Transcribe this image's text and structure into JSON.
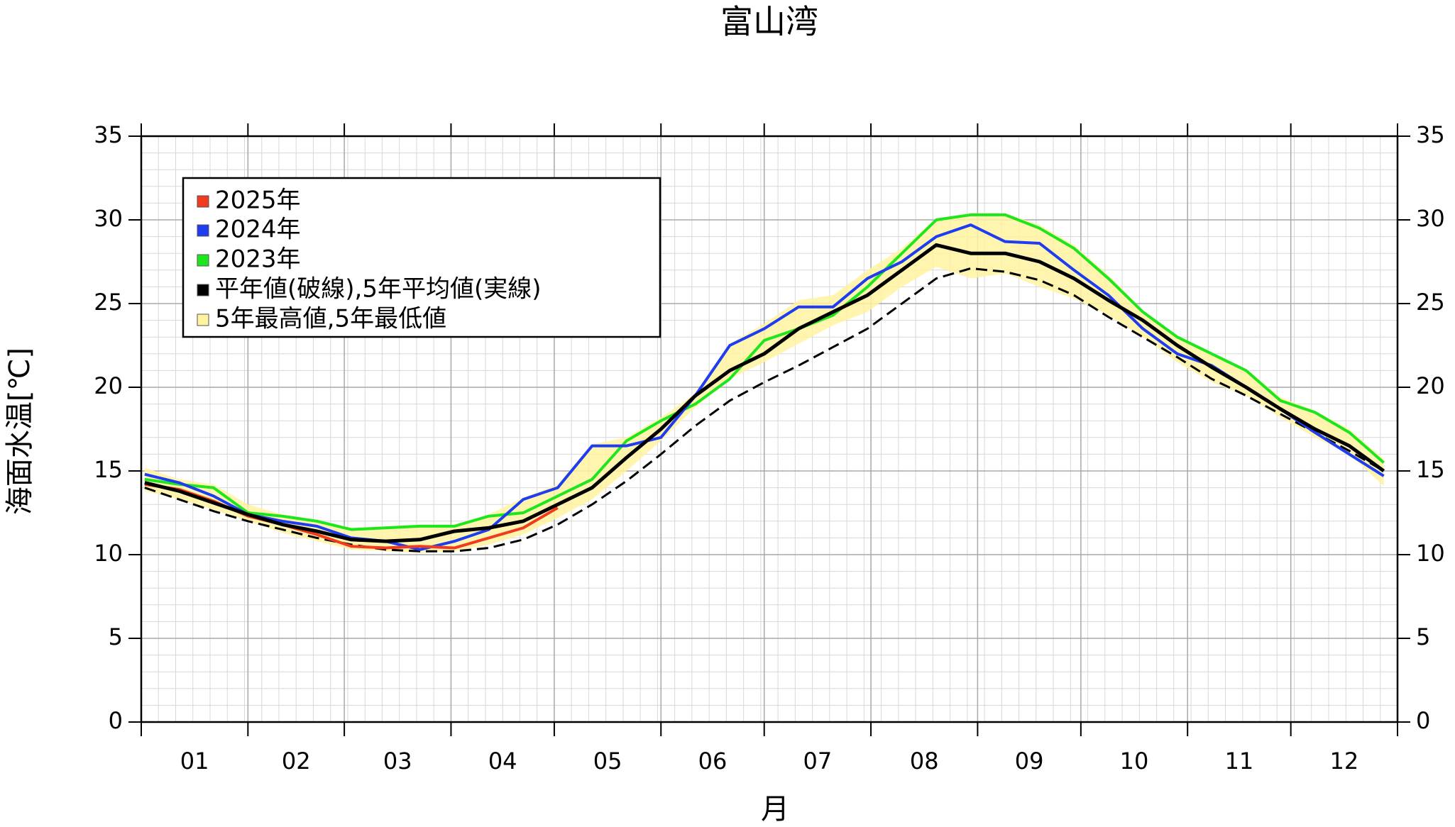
{
  "chart_data": {
    "type": "line",
    "title": "富山湾",
    "ylabel": "海面水温[℃]",
    "xlabel": "月",
    "month_labels": [
      "01",
      "02",
      "03",
      "04",
      "05",
      "06",
      "07",
      "08",
      "09",
      "10",
      "11",
      "12"
    ],
    "xlim": [
      0,
      365
    ],
    "xticks": [
      0,
      31,
      59,
      90,
      120,
      151,
      181,
      212,
      243,
      273,
      304,
      334,
      365
    ],
    "ylim": [
      0,
      35
    ],
    "yticks": [
      0,
      5,
      10,
      15,
      20,
      25,
      30,
      35
    ],
    "x_minor_step": 5,
    "y_minor_step": 1,
    "grid": true,
    "x": [
      1,
      11,
      21,
      31,
      41,
      51,
      61,
      71,
      81,
      91,
      101,
      111,
      121,
      131,
      141,
      151,
      161,
      171,
      181,
      191,
      201,
      211,
      221,
      231,
      241,
      251,
      261,
      271,
      281,
      291,
      301,
      311,
      321,
      331,
      341,
      351,
      361
    ],
    "band": {
      "name": "5年最高値,5年最低値",
      "color": "#fff3a0",
      "upper": [
        15.2,
        14.5,
        14.2,
        13.0,
        12.4,
        12.1,
        11.6,
        11.7,
        11.8,
        11.8,
        12.4,
        13.4,
        14.2,
        16.6,
        17.0,
        18.2,
        19.6,
        22.6,
        23.8,
        25.2,
        25.5,
        27.0,
        28.3,
        30.1,
        30.4,
        30.4,
        29.7,
        28.5,
        26.7,
        24.6,
        23.1,
        22.1,
        21.1,
        19.4,
        18.6,
        17.5,
        15.7
      ],
      "lower": [
        13.8,
        13.3,
        12.7,
        12.0,
        11.3,
        10.8,
        10.3,
        10.2,
        10.1,
        10.2,
        10.6,
        11.2,
        12.2,
        13.3,
        15.0,
        16.8,
        18.8,
        20.5,
        21.5,
        22.6,
        23.7,
        24.5,
        26.0,
        27.2,
        26.5,
        26.8,
        26.0,
        25.3,
        24.3,
        23.0,
        21.5,
        20.3,
        19.5,
        18.2,
        17.0,
        16.0,
        14.1
      ]
    },
    "normal": {
      "color": "#000000",
      "style": "dashed",
      "values": [
        14.0,
        13.3,
        12.6,
        12.0,
        11.5,
        11.0,
        10.6,
        10.3,
        10.2,
        10.2,
        10.4,
        10.9,
        11.8,
        13.0,
        14.4,
        16.0,
        17.7,
        19.2,
        20.3,
        21.3,
        22.4,
        23.5,
        25.0,
        26.5,
        27.1,
        26.9,
        26.4,
        25.5,
        24.2,
        23.0,
        21.8,
        20.5,
        19.5,
        18.4,
        17.3,
        16.2,
        15.0
      ]
    },
    "series": [
      {
        "name": "2025年",
        "color": "#f03c1e",
        "values": [
          14.2,
          13.9,
          13.2,
          12.3,
          11.8,
          11.2,
          10.5,
          10.4,
          10.5,
          10.4,
          11.0,
          11.6,
          12.8,
          null,
          null,
          null,
          null,
          null,
          null,
          null,
          null,
          null,
          null,
          null,
          null,
          null,
          null,
          null,
          null,
          null,
          null,
          null,
          null,
          null,
          null,
          null,
          null
        ]
      },
      {
        "name": "2024年",
        "color": "#1e3cf0",
        "values": [
          14.8,
          14.3,
          13.5,
          12.4,
          12.0,
          11.7,
          11.0,
          10.8,
          10.3,
          10.8,
          11.5,
          13.3,
          14.0,
          16.5,
          16.5,
          17.0,
          19.5,
          22.5,
          23.5,
          24.8,
          24.8,
          26.5,
          27.5,
          29.0,
          29.7,
          28.7,
          28.6,
          27.0,
          25.5,
          23.5,
          22.0,
          21.3,
          20.0,
          18.7,
          17.3,
          16.0,
          14.7
        ]
      },
      {
        "name": "2023年",
        "color": "#1ee61e",
        "values": [
          14.5,
          14.2,
          14.0,
          12.5,
          12.3,
          12.0,
          11.5,
          11.6,
          11.7,
          11.7,
          12.3,
          12.5,
          13.5,
          14.5,
          16.8,
          18.0,
          19.0,
          20.5,
          22.8,
          23.5,
          24.3,
          26.0,
          28.0,
          30.0,
          30.3,
          30.3,
          29.5,
          28.3,
          26.5,
          24.5,
          23.0,
          22.0,
          21.0,
          19.2,
          18.5,
          17.3,
          15.5
        ]
      },
      {
        "name": "平年値(破線),5年平均値(実線)",
        "color": "#000000",
        "values": [
          14.3,
          13.8,
          13.1,
          12.4,
          11.8,
          11.4,
          10.9,
          10.8,
          10.9,
          11.4,
          11.6,
          12.0,
          13.0,
          14.0,
          15.8,
          17.5,
          19.5,
          21.0,
          22.0,
          23.5,
          24.5,
          25.5,
          27.0,
          28.5,
          28.0,
          28.0,
          27.5,
          26.5,
          25.2,
          24.0,
          22.5,
          21.2,
          20.0,
          18.7,
          17.5,
          16.5,
          15.0
        ]
      }
    ]
  }
}
